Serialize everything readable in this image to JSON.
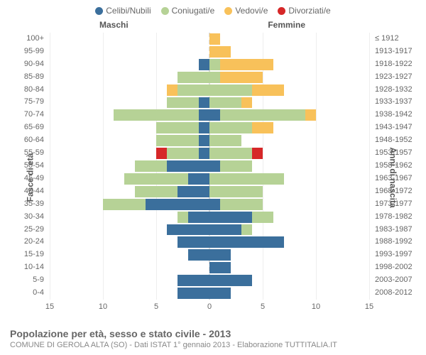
{
  "legend": [
    {
      "label": "Celibi/Nubili",
      "color": "#3b6f9c"
    },
    {
      "label": "Coniugati/e",
      "color": "#b6d296"
    },
    {
      "label": "Vedovi/e",
      "color": "#f8c15a"
    },
    {
      "label": "Divorziati/e",
      "color": "#d62728"
    }
  ],
  "headers": {
    "left": "Maschi",
    "right": "Femmine"
  },
  "axis": {
    "left_title": "Fasce di età",
    "right_title": "Anni di nascita",
    "xlim": 15,
    "xticks": [
      15,
      10,
      5,
      0,
      5,
      10,
      15
    ]
  },
  "footer": {
    "title": "Popolazione per età, sesso e stato civile - 2013",
    "sub": "COMUNE DI GEROLA ALTA (SO) - Dati ISTAT 1° gennaio 2013 - Elaborazione TUTTITALIA.IT"
  },
  "rows": [
    {
      "age": "100+",
      "birth": "≤ 1912",
      "m": {
        "c": 0,
        "k": 0,
        "v": 0,
        "d": 0
      },
      "f": {
        "c": 0,
        "k": 0,
        "v": 1,
        "d": 0
      }
    },
    {
      "age": "95-99",
      "birth": "1913-1917",
      "m": {
        "c": 0,
        "k": 0,
        "v": 0,
        "d": 0
      },
      "f": {
        "c": 0,
        "k": 0,
        "v": 2,
        "d": 0
      }
    },
    {
      "age": "90-94",
      "birth": "1918-1922",
      "m": {
        "c": 1,
        "k": 0,
        "v": 0,
        "d": 0
      },
      "f": {
        "c": 0,
        "k": 1,
        "v": 5,
        "d": 0
      }
    },
    {
      "age": "85-89",
      "birth": "1923-1927",
      "m": {
        "c": 0,
        "k": 3,
        "v": 0,
        "d": 0
      },
      "f": {
        "c": 0,
        "k": 1,
        "v": 4,
        "d": 0
      }
    },
    {
      "age": "80-84",
      "birth": "1928-1932",
      "m": {
        "c": 0,
        "k": 3,
        "v": 1,
        "d": 0
      },
      "f": {
        "c": 0,
        "k": 4,
        "v": 3,
        "d": 0
      }
    },
    {
      "age": "75-79",
      "birth": "1933-1937",
      "m": {
        "c": 1,
        "k": 3,
        "v": 0,
        "d": 0
      },
      "f": {
        "c": 0,
        "k": 3,
        "v": 1,
        "d": 0
      }
    },
    {
      "age": "70-74",
      "birth": "1938-1942",
      "m": {
        "c": 1,
        "k": 8,
        "v": 0,
        "d": 0
      },
      "f": {
        "c": 1,
        "k": 8,
        "v": 1,
        "d": 0
      }
    },
    {
      "age": "65-69",
      "birth": "1943-1947",
      "m": {
        "c": 1,
        "k": 4,
        "v": 0,
        "d": 0
      },
      "f": {
        "c": 0,
        "k": 4,
        "v": 2,
        "d": 0
      }
    },
    {
      "age": "60-64",
      "birth": "1948-1952",
      "m": {
        "c": 1,
        "k": 4,
        "v": 0,
        "d": 0
      },
      "f": {
        "c": 0,
        "k": 3,
        "v": 0,
        "d": 0
      }
    },
    {
      "age": "55-59",
      "birth": "1953-1957",
      "m": {
        "c": 1,
        "k": 3,
        "v": 0,
        "d": 1
      },
      "f": {
        "c": 0,
        "k": 4,
        "v": 0,
        "d": 1
      }
    },
    {
      "age": "50-54",
      "birth": "1958-1962",
      "m": {
        "c": 4,
        "k": 3,
        "v": 0,
        "d": 0
      },
      "f": {
        "c": 1,
        "k": 3,
        "v": 0,
        "d": 0
      }
    },
    {
      "age": "45-49",
      "birth": "1963-1967",
      "m": {
        "c": 2,
        "k": 6,
        "v": 0,
        "d": 0
      },
      "f": {
        "c": 0,
        "k": 7,
        "v": 0,
        "d": 0
      }
    },
    {
      "age": "40-44",
      "birth": "1968-1972",
      "m": {
        "c": 3,
        "k": 4,
        "v": 0,
        "d": 0
      },
      "f": {
        "c": 0,
        "k": 5,
        "v": 0,
        "d": 0
      }
    },
    {
      "age": "35-39",
      "birth": "1973-1977",
      "m": {
        "c": 6,
        "k": 4,
        "v": 0,
        "d": 0
      },
      "f": {
        "c": 1,
        "k": 4,
        "v": 0,
        "d": 0
      }
    },
    {
      "age": "30-34",
      "birth": "1978-1982",
      "m": {
        "c": 2,
        "k": 1,
        "v": 0,
        "d": 0
      },
      "f": {
        "c": 4,
        "k": 2,
        "v": 0,
        "d": 0
      }
    },
    {
      "age": "25-29",
      "birth": "1983-1987",
      "m": {
        "c": 4,
        "k": 0,
        "v": 0,
        "d": 0
      },
      "f": {
        "c": 3,
        "k": 1,
        "v": 0,
        "d": 0
      }
    },
    {
      "age": "20-24",
      "birth": "1988-1992",
      "m": {
        "c": 3,
        "k": 0,
        "v": 0,
        "d": 0
      },
      "f": {
        "c": 7,
        "k": 0,
        "v": 0,
        "d": 0
      }
    },
    {
      "age": "15-19",
      "birth": "1993-1997",
      "m": {
        "c": 2,
        "k": 0,
        "v": 0,
        "d": 0
      },
      "f": {
        "c": 2,
        "k": 0,
        "v": 0,
        "d": 0
      }
    },
    {
      "age": "10-14",
      "birth": "1998-2002",
      "m": {
        "c": 0,
        "k": 0,
        "v": 0,
        "d": 0
      },
      "f": {
        "c": 2,
        "k": 0,
        "v": 0,
        "d": 0
      }
    },
    {
      "age": "5-9",
      "birth": "2003-2007",
      "m": {
        "c": 3,
        "k": 0,
        "v": 0,
        "d": 0
      },
      "f": {
        "c": 4,
        "k": 0,
        "v": 0,
        "d": 0
      }
    },
    {
      "age": "0-4",
      "birth": "2008-2012",
      "m": {
        "c": 3,
        "k": 0,
        "v": 0,
        "d": 0
      },
      "f": {
        "c": 2,
        "k": 0,
        "v": 0,
        "d": 0
      }
    }
  ],
  "colors": {
    "c": "#3b6f9c",
    "k": "#b6d296",
    "v": "#f8c15a",
    "d": "#d62728",
    "grid": "#eeeeee",
    "center": "#dddddd",
    "bg": "#ffffff"
  }
}
